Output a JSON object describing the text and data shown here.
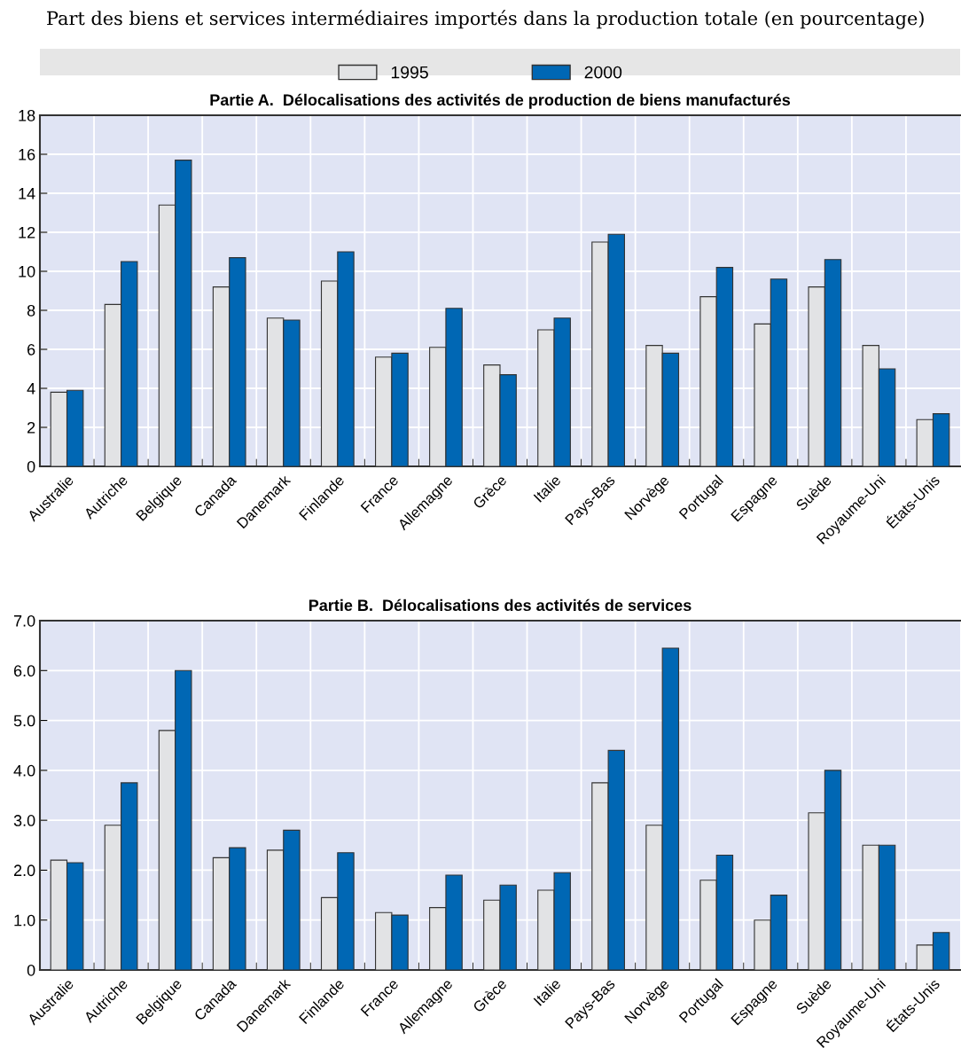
{
  "chart_data": [
    {
      "type": "bar",
      "title": "Part des biens et services intermédiaires importés dans la production totale (en pourcentage)",
      "subtitle": "Partie A.  Délocalisations des activités de production de biens manufacturés",
      "categories": [
        "Australie",
        "Autriche",
        "Belgique",
        "Canada",
        "Danemark",
        "Finlande",
        "France",
        "Allemagne",
        "Grèce",
        "Italie",
        "Pays-Bas",
        "Norvège",
        "Portugal",
        "Espagne",
        "Suède",
        "Royaume-Uni",
        "États-Unis"
      ],
      "series": [
        {
          "name": "1995",
          "color": "#e2e3e5",
          "values": [
            3.8,
            8.3,
            13.4,
            9.2,
            7.6,
            9.5,
            5.6,
            6.1,
            5.2,
            7.0,
            11.5,
            6.2,
            8.7,
            7.3,
            9.2,
            6.2,
            2.4
          ]
        },
        {
          "name": "2000",
          "color": "#0067b4",
          "values": [
            3.9,
            10.5,
            15.7,
            10.7,
            7.5,
            11.0,
            5.8,
            8.1,
            4.7,
            7.6,
            11.9,
            5.8,
            10.2,
            9.6,
            10.6,
            5.0,
            2.7
          ]
        }
      ],
      "ylim": [
        0,
        18
      ],
      "yticks": [
        0,
        2,
        4,
        6,
        8,
        10,
        12,
        14,
        16,
        18
      ],
      "grid": true,
      "legend": "top"
    },
    {
      "type": "bar",
      "title": "Partie B.  Délocalisations des activités de services",
      "categories": [
        "Australie",
        "Autriche",
        "Belgique",
        "Canada",
        "Danemark",
        "Finlande",
        "France",
        "Allemagne",
        "Grèce",
        "Italie",
        "Pays-Bas",
        "Norvège",
        "Portugal",
        "Espagne",
        "Suède",
        "Royaume-Uni",
        "États-Unis"
      ],
      "series": [
        {
          "name": "1995",
          "color": "#e2e3e5",
          "values": [
            2.2,
            2.9,
            4.8,
            2.25,
            2.4,
            1.45,
            1.15,
            1.25,
            1.4,
            1.6,
            3.75,
            2.9,
            1.8,
            1.0,
            3.15,
            2.5,
            0.5
          ]
        },
        {
          "name": "2000",
          "color": "#0067b4",
          "values": [
            2.15,
            3.75,
            6.0,
            2.45,
            2.8,
            2.35,
            1.1,
            1.9,
            1.7,
            1.95,
            4.4,
            6.45,
            2.3,
            1.5,
            4.0,
            2.5,
            0.75
          ]
        }
      ],
      "ylim": [
        0,
        7
      ],
      "yticks": [
        0,
        {
          "value": 1,
          "label": "1.0"
        },
        {
          "value": 2,
          "label": "2.0"
        },
        {
          "value": 3,
          "label": "3.0"
        },
        {
          "value": 4,
          "label": "4.0"
        },
        {
          "value": 5,
          "label": "5.0"
        },
        {
          "value": 6,
          "label": "6.0"
        },
        {
          "value": 7,
          "label": "7.0"
        }
      ],
      "grid": true
    }
  ]
}
